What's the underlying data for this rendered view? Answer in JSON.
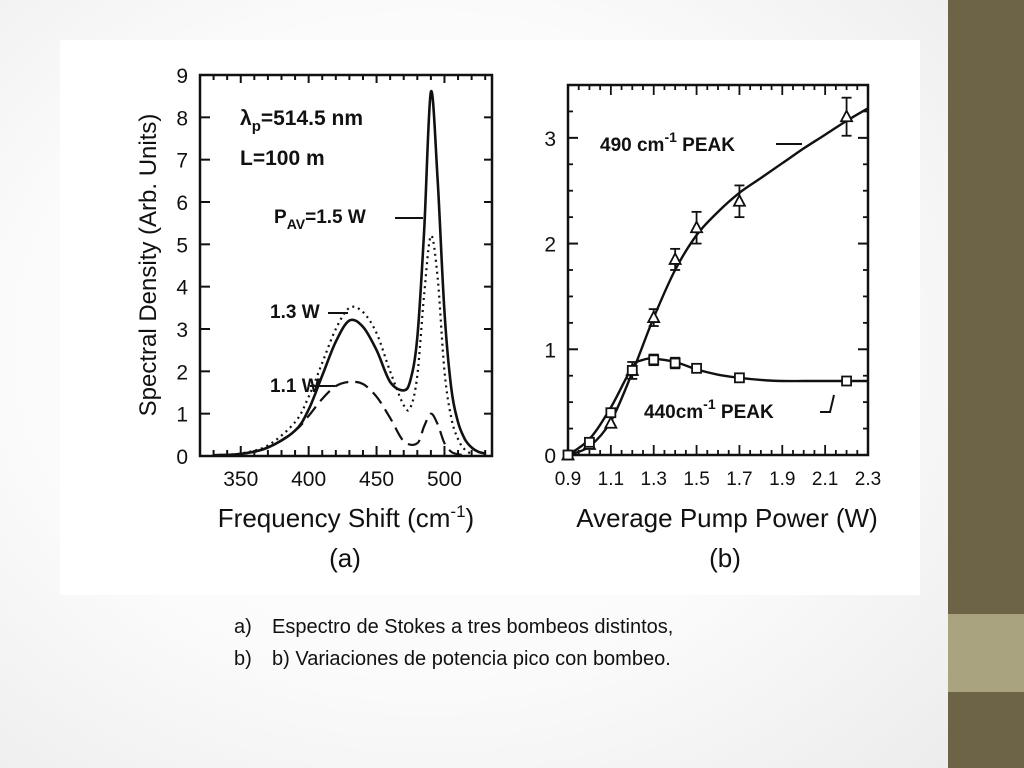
{
  "slide": {
    "accent_dark": "#6d6448",
    "accent_light": "#a9a37f"
  },
  "chart_data": [
    {
      "type": "line",
      "panel_label": "(a)",
      "xlabel": "Frequency Shift (cm",
      "xlabel_sup": "-1",
      "xlabel_close": ")",
      "ylabel": "Spectral Density (Arb. Units)",
      "xlim": [
        320,
        535
      ],
      "ylim": [
        0,
        9
      ],
      "xticks": [
        350,
        400,
        450,
        500
      ],
      "yticks": [
        0,
        1,
        2,
        3,
        4,
        5,
        6,
        7,
        8,
        9
      ],
      "annotations": {
        "lambda_sym": "λ",
        "lambda_sub": "p",
        "lambda_val": "=514.5 nm",
        "length": "L=100 m"
      },
      "series": [
        {
          "name": "P",
          "name_sub": "AV",
          "name_rest": "=1.5 W",
          "style": "solid",
          "x": [
            330,
            350,
            370,
            390,
            400,
            410,
            420,
            430,
            440,
            450,
            460,
            470,
            475,
            480,
            485,
            490,
            495,
            500,
            505,
            510,
            515,
            520,
            525,
            530
          ],
          "y": [
            0.02,
            0.05,
            0.2,
            0.6,
            1.1,
            1.9,
            2.7,
            3.2,
            3.05,
            2.5,
            1.75,
            1.55,
            1.8,
            2.8,
            5.3,
            8.6,
            6.5,
            3.4,
            1.6,
            0.8,
            0.4,
            0.2,
            0.1,
            0.06
          ]
        },
        {
          "name": "1.3 W",
          "style": "dotted",
          "x": [
            330,
            350,
            370,
            390,
            400,
            410,
            420,
            430,
            440,
            450,
            460,
            470,
            475,
            480,
            485,
            490,
            495,
            500,
            505,
            510,
            515,
            520
          ],
          "y": [
            0.02,
            0.06,
            0.25,
            0.8,
            1.4,
            2.2,
            3.0,
            3.5,
            3.4,
            2.9,
            2.0,
            1.2,
            1.15,
            1.9,
            3.8,
            5.2,
            4.2,
            2.0,
            0.9,
            0.4,
            0.15,
            0.05
          ]
        },
        {
          "name": "1.1 W",
          "style": "dashed",
          "x": [
            330,
            350,
            370,
            390,
            400,
            410,
            420,
            430,
            440,
            450,
            460,
            470,
            480,
            485,
            490,
            495,
            500,
            505,
            510,
            515
          ],
          "y": [
            0.02,
            0.05,
            0.2,
            0.6,
            0.95,
            1.35,
            1.65,
            1.75,
            1.7,
            1.4,
            0.9,
            0.35,
            0.3,
            0.7,
            1.0,
            0.75,
            0.3,
            0.1,
            0.04,
            0.02
          ]
        }
      ]
    },
    {
      "type": "scatter",
      "panel_label": "(b)",
      "xlabel": "Average Pump Power (W)",
      "ylabel": "",
      "xlim": [
        0.9,
        2.3
      ],
      "ylim": [
        0,
        3.5
      ],
      "xticks": [
        "0.9",
        "1.1",
        "1.3",
        "1.5",
        "1.7",
        "1.9",
        "2.1",
        "2.3"
      ],
      "yticks": [
        0,
        1,
        2,
        3
      ],
      "series": [
        {
          "name": "490 cm",
          "name_sup": "-1",
          "name_rest": " PEAK",
          "marker": "triangle",
          "x": [
            0.9,
            1.0,
            1.1,
            1.2,
            1.3,
            1.4,
            1.5,
            1.7,
            2.2
          ],
          "y": [
            0.0,
            0.1,
            0.3,
            0.8,
            1.3,
            1.85,
            2.15,
            2.4,
            3.2
          ],
          "err": [
            0,
            0,
            0,
            0.08,
            0.08,
            0.1,
            0.15,
            0.15,
            0.18
          ],
          "curve_x": [
            0.9,
            1.0,
            1.1,
            1.2,
            1.3,
            1.4,
            1.5,
            1.6,
            1.7,
            1.8,
            1.9,
            2.0,
            2.1,
            2.2,
            2.3
          ],
          "curve_y": [
            0.0,
            0.08,
            0.32,
            0.78,
            1.3,
            1.75,
            2.08,
            2.3,
            2.48,
            2.62,
            2.76,
            2.9,
            3.03,
            3.16,
            3.28
          ]
        },
        {
          "name": "440cm",
          "name_sup": "-1",
          "name_rest": " PEAK",
          "marker": "square",
          "x": [
            0.9,
            1.0,
            1.1,
            1.2,
            1.3,
            1.4,
            1.5,
            1.7,
            2.2
          ],
          "y": [
            0.0,
            0.12,
            0.4,
            0.8,
            0.9,
            0.87,
            0.82,
            0.73,
            0.7
          ],
          "err": [
            0,
            0,
            0,
            0,
            0.05,
            0.05,
            0.04,
            0,
            0
          ],
          "curve_x": [
            0.9,
            1.0,
            1.1,
            1.2,
            1.25,
            1.3,
            1.4,
            1.5,
            1.6,
            1.7,
            1.8,
            1.9,
            2.0,
            2.1,
            2.2,
            2.3
          ],
          "curve_y": [
            0.0,
            0.15,
            0.45,
            0.83,
            0.9,
            0.91,
            0.88,
            0.81,
            0.76,
            0.73,
            0.71,
            0.7,
            0.7,
            0.7,
            0.7,
            0.7
          ]
        }
      ]
    }
  ],
  "caption": {
    "items": [
      {
        "marker": "a)",
        "text": "Espectro de Stokes a tres bombeos distintos,"
      },
      {
        "marker": "b)",
        "text": "b) Variaciones de potencia pico con bombeo."
      }
    ]
  }
}
